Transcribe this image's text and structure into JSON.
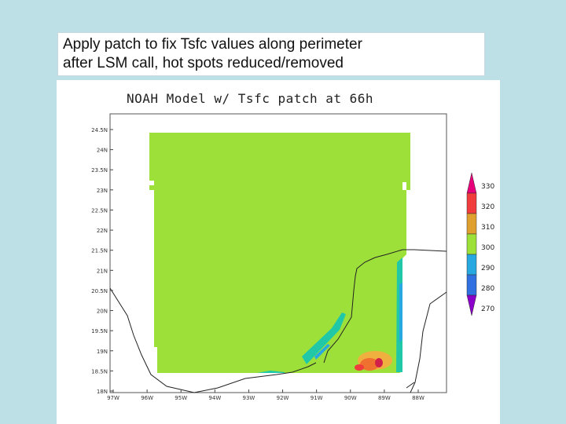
{
  "caption": {
    "line1": "Apply patch to fix Tsfc values along perimeter",
    "line2": "after LSM call, hot spots reduced/removed"
  },
  "chart_data": {
    "type": "heatmap",
    "title": "NOAH Model w/ Tsfc patch at 66h",
    "xlabel": "",
    "ylabel": "",
    "x_ticks": [
      "97W",
      "96W",
      "95W",
      "94W",
      "93W",
      "92W",
      "91W",
      "90W",
      "89W",
      "88W"
    ],
    "y_ticks": [
      "24.5N",
      "24N",
      "23.5N",
      "23N",
      "22.5N",
      "22N",
      "21.5N",
      "21N",
      "20.5N",
      "20N",
      "19.5N",
      "19N",
      "18.5N",
      "18N"
    ],
    "colorbar": {
      "levels": [
        "330",
        "320",
        "310",
        "300",
        "290",
        "280",
        "270"
      ],
      "colors": [
        "#e8007a",
        "#f03c3c",
        "#e0a030",
        "#9de03a",
        "#28a8e0",
        "#3070e0",
        "#8a00c8"
      ]
    },
    "dominant_color": "#9de03a"
  }
}
